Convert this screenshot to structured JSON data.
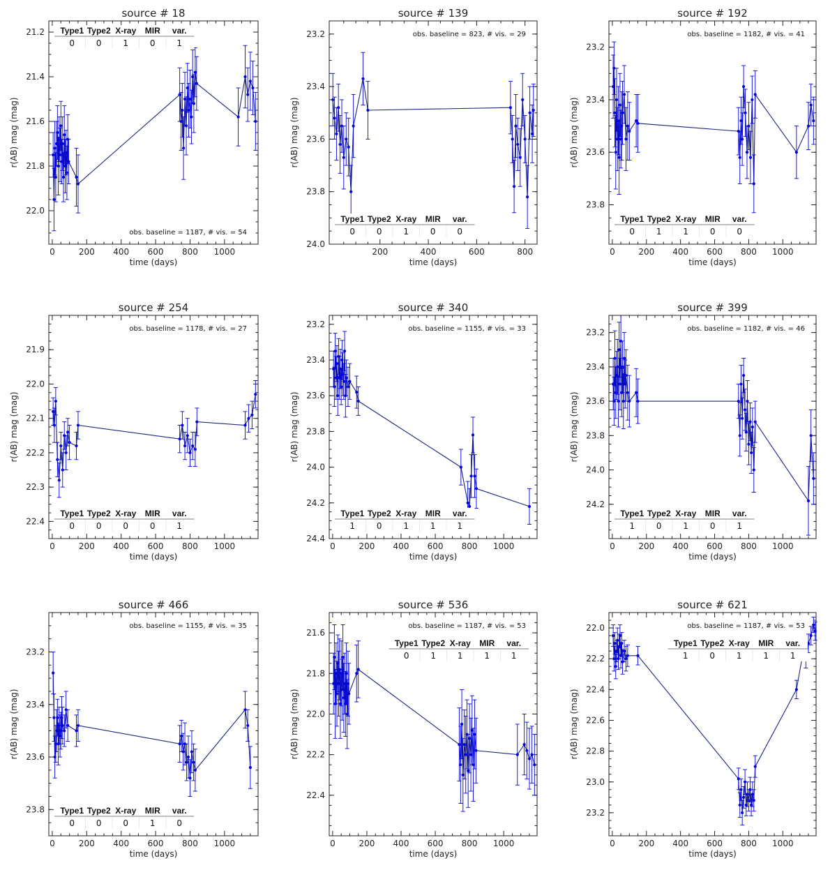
{
  "figure": {
    "xlabel": "time (days)",
    "ylabel": "r(AB) mag (mag)",
    "title_prefix": "source  #",
    "table_columns": [
      "Type1",
      "Type2",
      "X-ray",
      "MIR",
      "var."
    ],
    "line_color": "#1a237e",
    "point_color": "#0000dd"
  },
  "chart_data": [
    {
      "type": "line",
      "title": "source  #    18",
      "source": "18",
      "xlim": [
        -20,
        1195
      ],
      "ylim": [
        22.15,
        21.15
      ],
      "xticks": [
        0,
        200,
        400,
        600,
        800,
        1000
      ],
      "yticks": [
        21.2,
        21.4,
        21.6,
        21.8,
        22.0
      ],
      "baseline_text": "obs. baseline = 1187, # vis. = 54",
      "baseline_pos": "bottom-right",
      "flags": [
        0,
        0,
        1,
        0,
        1
      ],
      "table_pos": "top-left",
      "x": [
        5,
        10,
        15,
        20,
        25,
        30,
        35,
        40,
        45,
        50,
        55,
        60,
        65,
        70,
        75,
        80,
        85,
        90,
        95,
        140,
        150,
        740,
        748,
        755,
        762,
        770,
        778,
        785,
        792,
        800,
        808,
        815,
        822,
        830,
        838,
        1080,
        1120,
        1135,
        1150,
        1165,
        1180
      ],
      "y": [
        21.75,
        21.95,
        21.72,
        21.85,
        21.7,
        21.65,
        21.8,
        21.68,
        21.75,
        21.62,
        21.78,
        21.7,
        21.85,
        21.66,
        21.8,
        21.74,
        21.83,
        21.68,
        21.78,
        21.85,
        21.88,
        21.48,
        21.6,
        21.55,
        21.72,
        21.5,
        21.62,
        21.45,
        21.55,
        21.5,
        21.58,
        21.4,
        21.52,
        21.38,
        21.43,
        21.58,
        21.4,
        21.48,
        21.42,
        21.45,
        21.6
      ],
      "err": [
        0.1,
        0.14,
        0.12,
        0.11,
        0.1,
        0.12,
        0.13,
        0.1,
        0.12,
        0.11,
        0.1,
        0.12,
        0.11,
        0.13,
        0.12,
        0.1,
        0.12,
        0.11,
        0.1,
        0.13,
        0.13,
        0.12,
        0.13,
        0.12,
        0.14,
        0.12,
        0.13,
        0.11,
        0.12,
        0.13,
        0.12,
        0.12,
        0.13,
        0.11,
        0.12,
        0.13,
        0.14,
        0.12,
        0.13,
        0.12,
        0.13
      ]
    },
    {
      "type": "line",
      "title": "source  #   139",
      "source": "139",
      "xlim": [
        -10,
        850
      ],
      "ylim": [
        24.0,
        23.15
      ],
      "xticks": [
        200,
        400,
        600,
        800
      ],
      "yticks": [
        23.2,
        23.4,
        23.6,
        23.8,
        24.0
      ],
      "baseline_text": "obs. baseline =  823, # vis. = 29",
      "baseline_pos": "top-right",
      "flags": [
        0,
        0,
        1,
        0,
        0
      ],
      "table_pos": "bottom-left",
      "x": [
        5,
        12,
        20,
        28,
        35,
        42,
        50,
        60,
        70,
        80,
        90,
        130,
        150,
        740,
        748,
        755,
        762,
        770,
        780,
        790,
        800,
        810,
        820,
        830,
        835
      ],
      "y": [
        23.45,
        23.52,
        23.58,
        23.48,
        23.62,
        23.55,
        23.67,
        23.6,
        23.63,
        23.8,
        23.55,
        23.37,
        23.49,
        23.48,
        23.6,
        23.78,
        23.55,
        23.62,
        23.67,
        23.45,
        23.6,
        23.82,
        23.5,
        23.58,
        23.49
      ],
      "err": [
        0.1,
        0.08,
        0.1,
        0.09,
        0.11,
        0.1,
        0.12,
        0.1,
        0.11,
        0.1,
        0.12,
        0.1,
        0.11,
        0.1,
        0.09,
        0.1,
        0.12,
        0.1,
        0.11,
        0.1,
        0.09,
        0.12,
        0.1,
        0.11,
        0.1
      ]
    },
    {
      "type": "line",
      "title": "source  #   192",
      "source": "192",
      "xlim": [
        -20,
        1195
      ],
      "ylim": [
        23.95,
        23.1
      ],
      "xticks": [
        0,
        200,
        400,
        600,
        800,
        1000
      ],
      "yticks": [
        23.2,
        23.4,
        23.6,
        23.8
      ],
      "baseline_text": "obs. baseline = 1182, # vis. = 41",
      "baseline_pos": "top-right",
      "flags": [
        0,
        1,
        1,
        0,
        0
      ],
      "table_pos": "bottom-left",
      "x": [
        5,
        10,
        15,
        20,
        25,
        30,
        35,
        40,
        45,
        50,
        55,
        60,
        70,
        80,
        90,
        100,
        140,
        150,
        740,
        748,
        755,
        762,
        770,
        780,
        790,
        800,
        810,
        820,
        830,
        838,
        1080,
        1150,
        1165,
        1180
      ],
      "y": [
        23.35,
        23.28,
        23.45,
        23.6,
        23.4,
        23.55,
        23.48,
        23.62,
        23.42,
        23.55,
        23.5,
        23.45,
        23.38,
        23.55,
        23.5,
        23.52,
        23.48,
        23.49,
        23.52,
        23.62,
        23.48,
        23.55,
        23.35,
        23.45,
        23.6,
        23.5,
        23.62,
        23.4,
        23.72,
        23.38,
        23.6,
        23.5,
        23.42,
        23.48
      ],
      "err": [
        0.12,
        0.1,
        0.13,
        0.14,
        0.12,
        0.12,
        0.13,
        0.14,
        0.12,
        0.11,
        0.13,
        0.12,
        0.11,
        0.12,
        0.13,
        0.11,
        0.1,
        0.11,
        0.09,
        0.1,
        0.09,
        0.1,
        0.08,
        0.09,
        0.1,
        0.09,
        0.1,
        0.09,
        0.11,
        0.09,
        0.1,
        0.09,
        0.08,
        0.09
      ]
    },
    {
      "type": "line",
      "title": "source  #   254",
      "source": "254",
      "xlim": [
        -20,
        1195
      ],
      "ylim": [
        22.45,
        21.8
      ],
      "xticks": [
        0,
        200,
        400,
        600,
        800,
        1000
      ],
      "yticks": [
        21.9,
        22.0,
        22.1,
        22.2,
        22.3,
        22.4
      ],
      "baseline_text": "obs. baseline = 1178, # vis. = 27",
      "baseline_pos": "top-right",
      "flags": [
        0,
        0,
        0,
        0,
        1
      ],
      "table_pos": "bottom-left",
      "x": [
        5,
        12,
        20,
        30,
        40,
        50,
        60,
        70,
        80,
        90,
        100,
        140,
        150,
        740,
        755,
        770,
        785,
        800,
        815,
        830,
        840,
        1120,
        1140,
        1160,
        1180
      ],
      "y": [
        22.08,
        22.12,
        22.05,
        22.22,
        22.28,
        22.18,
        22.25,
        22.15,
        22.2,
        22.14,
        22.17,
        22.18,
        22.12,
        22.16,
        22.12,
        22.18,
        22.15,
        22.2,
        22.18,
        22.19,
        22.11,
        22.12,
        22.1,
        22.09,
        22.03
      ],
      "err": [
        0.04,
        0.05,
        0.04,
        0.05,
        0.05,
        0.04,
        0.05,
        0.04,
        0.05,
        0.04,
        0.05,
        0.04,
        0.04,
        0.04,
        0.04,
        0.04,
        0.05,
        0.04,
        0.04,
        0.05,
        0.04,
        0.04,
        0.04,
        0.04,
        0.04
      ]
    },
    {
      "type": "line",
      "title": "source  #   340",
      "source": "340",
      "xlim": [
        -20,
        1195
      ],
      "ylim": [
        24.4,
        23.15
      ],
      "xticks": [
        0,
        200,
        400,
        600,
        800,
        1000
      ],
      "yticks": [
        23.2,
        23.4,
        23.6,
        23.8,
        24.0,
        24.2,
        24.4
      ],
      "baseline_text": "obs. baseline = 1155, # vis. = 33",
      "baseline_pos": "top-right",
      "flags": [
        1,
        0,
        1,
        1,
        1
      ],
      "table_pos": "bottom-left",
      "x": [
        5,
        10,
        15,
        20,
        25,
        30,
        35,
        40,
        45,
        50,
        55,
        60,
        65,
        70,
        75,
        80,
        90,
        100,
        140,
        150,
        750,
        790,
        800,
        810,
        820,
        830,
        840,
        1150
      ],
      "y": [
        23.45,
        23.55,
        23.35,
        23.5,
        23.42,
        23.6,
        23.38,
        23.5,
        23.45,
        23.55,
        23.4,
        23.48,
        23.52,
        23.35,
        23.6,
        23.5,
        23.55,
        23.52,
        23.58,
        23.63,
        24.0,
        24.2,
        24.22,
        24.05,
        23.82,
        24.05,
        24.12,
        24.22
      ],
      "err": [
        0.1,
        0.11,
        0.1,
        0.12,
        0.1,
        0.11,
        0.1,
        0.12,
        0.11,
        0.1,
        0.11,
        0.12,
        0.1,
        0.11,
        0.12,
        0.1,
        0.11,
        0.1,
        0.09,
        0.08,
        0.1,
        0.12,
        0.1,
        0.12,
        0.1,
        0.12,
        0.11,
        0.1
      ]
    },
    {
      "type": "line",
      "title": "source  #   399",
      "source": "399",
      "xlim": [
        -20,
        1195
      ],
      "ylim": [
        24.4,
        23.1
      ],
      "xticks": [
        0,
        200,
        400,
        600,
        800,
        1000
      ],
      "yticks": [
        23.2,
        23.4,
        23.6,
        23.8,
        24.0,
        24.2
      ],
      "baseline_text": "obs. baseline = 1182, # vis. = 46",
      "baseline_pos": "top-right",
      "flags": [
        1,
        0,
        1,
        0,
        1
      ],
      "table_pos": "bottom-left",
      "x": [
        5,
        10,
        15,
        20,
        25,
        30,
        35,
        40,
        45,
        50,
        55,
        60,
        65,
        70,
        75,
        80,
        90,
        100,
        140,
        150,
        740,
        748,
        755,
        762,
        770,
        778,
        785,
        792,
        800,
        808,
        815,
        822,
        830,
        838,
        1150,
        1165,
        1180
      ],
      "y": [
        23.5,
        23.6,
        23.35,
        23.55,
        23.45,
        23.4,
        23.6,
        23.3,
        23.5,
        23.25,
        23.55,
        23.4,
        23.6,
        23.35,
        23.5,
        23.45,
        23.55,
        23.6,
        23.55,
        23.6,
        23.6,
        23.8,
        23.5,
        23.7,
        23.45,
        23.65,
        23.78,
        23.6,
        23.85,
        23.72,
        23.9,
        23.75,
        24.0,
        23.72,
        24.18,
        23.8,
        24.05
      ],
      "err": [
        0.15,
        0.14,
        0.16,
        0.15,
        0.14,
        0.16,
        0.15,
        0.16,
        0.15,
        0.16,
        0.14,
        0.15,
        0.16,
        0.15,
        0.14,
        0.15,
        0.16,
        0.15,
        0.14,
        0.13,
        0.1,
        0.12,
        0.11,
        0.12,
        0.1,
        0.12,
        0.11,
        0.12,
        0.12,
        0.11,
        0.12,
        0.11,
        0.13,
        0.12,
        0.2,
        0.15,
        0.15
      ]
    },
    {
      "type": "line",
      "title": "source  #   466",
      "source": "466",
      "xlim": [
        -20,
        1195
      ],
      "ylim": [
        23.9,
        23.05
      ],
      "xticks": [
        0,
        200,
        400,
        600,
        800,
        1000
      ],
      "yticks": [
        23.2,
        23.4,
        23.6,
        23.8
      ],
      "baseline_text": "obs. baseline = 1155, # vis. = 35",
      "baseline_pos": "top-right",
      "flags": [
        0,
        0,
        0,
        1,
        0
      ],
      "table_pos": "bottom-left",
      "x": [
        5,
        10,
        15,
        20,
        25,
        30,
        35,
        40,
        45,
        50,
        55,
        60,
        70,
        80,
        90,
        140,
        150,
        740,
        750,
        760,
        770,
        780,
        790,
        800,
        810,
        820,
        830,
        1120,
        1135,
        1150
      ],
      "y": [
        23.28,
        23.45,
        23.6,
        23.55,
        23.5,
        23.45,
        23.55,
        23.48,
        23.52,
        23.5,
        23.45,
        23.48,
        23.5,
        23.42,
        23.48,
        23.5,
        23.48,
        23.55,
        23.52,
        23.58,
        23.55,
        23.62,
        23.6,
        23.68,
        23.58,
        23.62,
        23.65,
        23.42,
        23.48,
        23.64
      ],
      "err": [
        0.08,
        0.09,
        0.08,
        0.07,
        0.08,
        0.07,
        0.08,
        0.07,
        0.08,
        0.07,
        0.08,
        0.07,
        0.06,
        0.07,
        0.06,
        0.06,
        0.06,
        0.07,
        0.06,
        0.07,
        0.08,
        0.07,
        0.08,
        0.07,
        0.08,
        0.07,
        0.08,
        0.07,
        0.06,
        0.08
      ]
    },
    {
      "type": "line",
      "title": "source  #   536",
      "source": "536",
      "xlim": [
        -20,
        1195
      ],
      "ylim": [
        22.6,
        21.5
      ],
      "xticks": [
        0,
        200,
        400,
        600,
        800,
        1000
      ],
      "yticks": [
        21.6,
        21.8,
        22.0,
        22.2,
        22.4
      ],
      "baseline_text": "obs. baseline = 1187, # vis. = 53",
      "baseline_pos": "top-right",
      "flags": [
        0,
        1,
        1,
        1,
        1
      ],
      "table_pos": "top-right",
      "x": [
        5,
        10,
        15,
        20,
        25,
        30,
        35,
        40,
        45,
        50,
        55,
        60,
        65,
        70,
        75,
        80,
        85,
        90,
        95,
        140,
        150,
        740,
        748,
        755,
        762,
        770,
        778,
        785,
        792,
        800,
        808,
        815,
        822,
        830,
        838,
        1080,
        1120,
        1135,
        1150,
        1165,
        1180
      ],
      "y": [
        21.85,
        21.72,
        21.95,
        21.8,
        21.9,
        21.75,
        21.85,
        21.78,
        21.95,
        21.8,
        21.88,
        21.72,
        21.92,
        21.85,
        21.95,
        21.8,
        22.0,
        21.85,
        21.9,
        21.8,
        21.78,
        22.15,
        22.25,
        22.05,
        22.3,
        22.15,
        22.2,
        22.1,
        22.28,
        22.12,
        22.2,
        22.08,
        22.25,
        22.1,
        22.18,
        22.2,
        22.15,
        22.18,
        22.22,
        22.2,
        22.25
      ],
      "err": [
        0.15,
        0.16,
        0.17,
        0.15,
        0.16,
        0.14,
        0.16,
        0.15,
        0.17,
        0.16,
        0.15,
        0.16,
        0.17,
        0.15,
        0.16,
        0.15,
        0.17,
        0.16,
        0.15,
        0.14,
        0.14,
        0.18,
        0.19,
        0.17,
        0.18,
        0.17,
        0.19,
        0.17,
        0.18,
        0.17,
        0.18,
        0.17,
        0.18,
        0.17,
        0.16,
        0.15,
        0.15,
        0.14,
        0.15,
        0.14,
        0.15
      ]
    },
    {
      "type": "line",
      "title": "source  #   621",
      "source": "621",
      "xlim": [
        -20,
        1195
      ],
      "ylim": [
        23.35,
        21.9
      ],
      "xticks": [
        0,
        200,
        400,
        600,
        800,
        1000
      ],
      "yticks": [
        22.0,
        22.2,
        22.4,
        22.6,
        22.8,
        23.0,
        23.2
      ],
      "baseline_text": "obs. baseline = 1187, # vis. = 53",
      "baseline_pos": "top-right",
      "flags": [
        1,
        0,
        1,
        1,
        1
      ],
      "table_pos": "top-right",
      "x": [
        5,
        10,
        15,
        20,
        25,
        30,
        35,
        40,
        45,
        50,
        55,
        60,
        70,
        80,
        90,
        150,
        740,
        748,
        755,
        762,
        770,
        778,
        785,
        792,
        800,
        808,
        815,
        822,
        830,
        838,
        1080,
        1120,
        1135,
        1150,
        1165,
        1180,
        1190
      ],
      "y": [
        22.05,
        22.2,
        22.1,
        22.25,
        22.15,
        22.08,
        22.2,
        22.12,
        22.05,
        22.18,
        22.1,
        22.22,
        22.15,
        22.2,
        22.18,
        22.18,
        22.98,
        23.15,
        23.05,
        23.2,
        23.1,
        23.0,
        23.15,
        23.08,
        23.12,
        23.05,
        23.15,
        23.08,
        23.12,
        22.9,
        22.4,
        22.15,
        22.2,
        22.1,
        22.05,
        21.98,
        22.02
      ],
      "err": [
        0.07,
        0.08,
        0.07,
        0.08,
        0.07,
        0.08,
        0.07,
        0.08,
        0.07,
        0.08,
        0.07,
        0.08,
        0.07,
        0.08,
        0.07,
        0.06,
        0.07,
        0.08,
        0.07,
        0.08,
        0.07,
        0.08,
        0.07,
        0.08,
        0.07,
        0.08,
        0.07,
        0.08,
        0.07,
        0.07,
        0.06,
        0.06,
        0.06,
        0.06,
        0.06,
        0.05,
        0.06
      ]
    }
  ]
}
